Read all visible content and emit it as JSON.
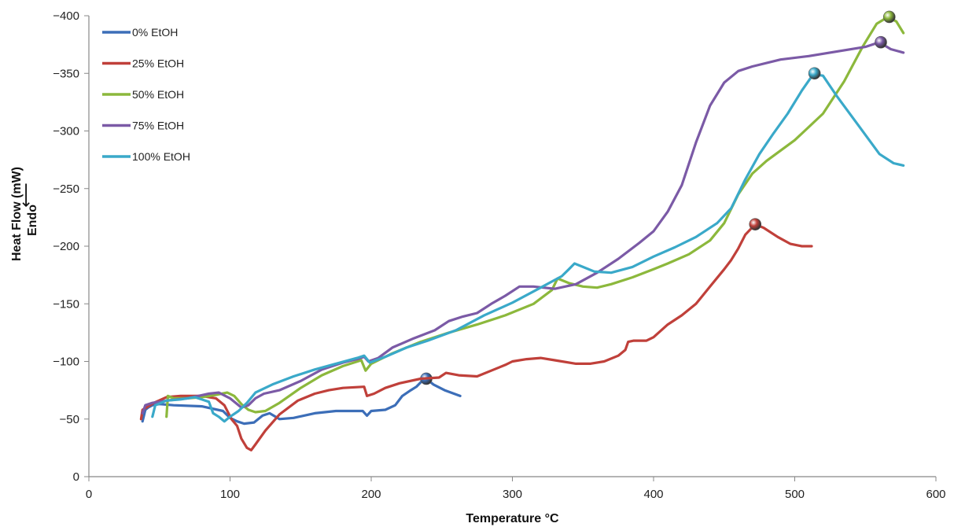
{
  "chart_data": {
    "type": "line",
    "xlabel": "Temperature °C",
    "ylabel_line1": "Heat Flow (mW)",
    "ylabel_line2": "Endo",
    "ylabel_arrow": "⟵",
    "xlim": [
      0,
      600
    ],
    "ylim": [
      0,
      -400
    ],
    "x_ticks": [
      0,
      100,
      200,
      300,
      400,
      500,
      600
    ],
    "y_ticks": [
      0,
      -50,
      -100,
      -150,
      -200,
      -250,
      -300,
      -350,
      -400
    ],
    "x_tick_labels": [
      "0",
      "100",
      "200",
      "300",
      "400",
      "500",
      "600"
    ],
    "y_tick_labels": [
      "0",
      "−50",
      "−100",
      "−150",
      "−200",
      "−250",
      "−300",
      "−350",
      "−400"
    ],
    "grid": false,
    "legend_position": "top-left",
    "series": [
      {
        "name": " 0% EtOH",
        "color": "#3c6eb8",
        "points": [
          [
            38,
            -48
          ],
          [
            40,
            -58
          ],
          [
            42,
            -60
          ],
          [
            45,
            -62
          ],
          [
            50,
            -63
          ],
          [
            60,
            -62
          ],
          [
            80,
            -61
          ],
          [
            95,
            -57
          ],
          [
            100,
            -51
          ],
          [
            105,
            -48
          ],
          [
            110,
            -46
          ],
          [
            117,
            -47
          ],
          [
            123,
            -53
          ],
          [
            128,
            -55
          ],
          [
            135,
            -50
          ],
          [
            145,
            -51
          ],
          [
            160,
            -55
          ],
          [
            175,
            -57
          ],
          [
            185,
            -57
          ],
          [
            194,
            -57
          ],
          [
            197,
            -53
          ],
          [
            200,
            -57
          ],
          [
            210,
            -58
          ],
          [
            217,
            -62
          ],
          [
            222,
            -70
          ],
          [
            228,
            -75
          ],
          [
            232,
            -78
          ],
          [
            236,
            -83
          ],
          [
            239,
            -85
          ],
          [
            244,
            -80
          ],
          [
            252,
            -75
          ],
          [
            263,
            -70
          ]
        ],
        "marker": [
          239,
          -85
        ]
      },
      {
        "name": "25% EtOH",
        "color": "#c0403a",
        "points": [
          [
            37,
            -50
          ],
          [
            38,
            -58
          ],
          [
            42,
            -61
          ],
          [
            46,
            -64
          ],
          [
            55,
            -69
          ],
          [
            65,
            -70
          ],
          [
            80,
            -70
          ],
          [
            90,
            -68
          ],
          [
            96,
            -62
          ],
          [
            101,
            -50
          ],
          [
            105,
            -44
          ],
          [
            108,
            -33
          ],
          [
            112,
            -25
          ],
          [
            115,
            -23
          ],
          [
            118,
            -28
          ],
          [
            125,
            -40
          ],
          [
            135,
            -54
          ],
          [
            148,
            -66
          ],
          [
            160,
            -72
          ],
          [
            170,
            -75
          ],
          [
            180,
            -77
          ],
          [
            195,
            -78
          ],
          [
            197,
            -70
          ],
          [
            202,
            -72
          ],
          [
            210,
            -77
          ],
          [
            220,
            -81
          ],
          [
            235,
            -85
          ],
          [
            248,
            -86
          ],
          [
            253,
            -90
          ],
          [
            262,
            -88
          ],
          [
            275,
            -87
          ],
          [
            285,
            -92
          ],
          [
            295,
            -97
          ],
          [
            300,
            -100
          ],
          [
            310,
            -102
          ],
          [
            320,
            -103
          ],
          [
            330,
            -101
          ],
          [
            345,
            -98
          ],
          [
            355,
            -98
          ],
          [
            365,
            -100
          ],
          [
            375,
            -105
          ],
          [
            380,
            -110
          ],
          [
            382,
            -117
          ],
          [
            386,
            -118
          ],
          [
            395,
            -118
          ],
          [
            400,
            -121
          ],
          [
            410,
            -132
          ],
          [
            420,
            -140
          ],
          [
            430,
            -150
          ],
          [
            440,
            -165
          ],
          [
            450,
            -180
          ],
          [
            455,
            -188
          ],
          [
            460,
            -198
          ],
          [
            465,
            -210
          ],
          [
            472,
            -219
          ],
          [
            478,
            -216
          ],
          [
            488,
            -208
          ],
          [
            497,
            -202
          ],
          [
            505,
            -200
          ],
          [
            512,
            -200
          ]
        ],
        "marker": [
          472,
          -219
        ]
      },
      {
        "name": "50% EtOH",
        "color": "#8cb83c",
        "points": [
          [
            55,
            -52
          ],
          [
            56,
            -70
          ],
          [
            60,
            -68
          ],
          [
            70,
            -68
          ],
          [
            80,
            -69
          ],
          [
            90,
            -71
          ],
          [
            98,
            -73
          ],
          [
            103,
            -70
          ],
          [
            108,
            -63
          ],
          [
            113,
            -58
          ],
          [
            118,
            -56
          ],
          [
            125,
            -57
          ],
          [
            135,
            -64
          ],
          [
            150,
            -77
          ],
          [
            165,
            -88
          ],
          [
            180,
            -96
          ],
          [
            193,
            -101
          ],
          [
            196,
            -92
          ],
          [
            200,
            -98
          ],
          [
            215,
            -107
          ],
          [
            235,
            -117
          ],
          [
            255,
            -125
          ],
          [
            275,
            -132
          ],
          [
            295,
            -140
          ],
          [
            315,
            -150
          ],
          [
            328,
            -162
          ],
          [
            332,
            -172
          ],
          [
            340,
            -168
          ],
          [
            350,
            -165
          ],
          [
            360,
            -164
          ],
          [
            370,
            -167
          ],
          [
            385,
            -173
          ],
          [
            400,
            -180
          ],
          [
            410,
            -185
          ],
          [
            425,
            -193
          ],
          [
            440,
            -205
          ],
          [
            450,
            -220
          ],
          [
            460,
            -245
          ],
          [
            470,
            -263
          ],
          [
            480,
            -274
          ],
          [
            500,
            -292
          ],
          [
            520,
            -315
          ],
          [
            535,
            -343
          ],
          [
            548,
            -373
          ],
          [
            558,
            -393
          ],
          [
            566,
            -399
          ],
          [
            572,
            -395
          ],
          [
            577,
            -385
          ]
        ],
        "marker": [
          567,
          -399
        ]
      },
      {
        "name": "75% EtOH",
        "color": "#7b5aa6",
        "points": [
          [
            38,
            -55
          ],
          [
            40,
            -62
          ],
          [
            45,
            -64
          ],
          [
            55,
            -66
          ],
          [
            70,
            -68
          ],
          [
            85,
            -72
          ],
          [
            92,
            -73
          ],
          [
            100,
            -68
          ],
          [
            108,
            -60
          ],
          [
            113,
            -62
          ],
          [
            118,
            -68
          ],
          [
            124,
            -72
          ],
          [
            135,
            -75
          ],
          [
            150,
            -83
          ],
          [
            165,
            -93
          ],
          [
            180,
            -99
          ],
          [
            190,
            -102
          ],
          [
            195,
            -104
          ],
          [
            198,
            -100
          ],
          [
            205,
            -103
          ],
          [
            215,
            -112
          ],
          [
            230,
            -120
          ],
          [
            245,
            -127
          ],
          [
            255,
            -135
          ],
          [
            265,
            -139
          ],
          [
            275,
            -142
          ],
          [
            285,
            -150
          ],
          [
            295,
            -157
          ],
          [
            305,
            -165
          ],
          [
            315,
            -165
          ],
          [
            330,
            -163
          ],
          [
            345,
            -167
          ],
          [
            360,
            -177
          ],
          [
            375,
            -189
          ],
          [
            390,
            -203
          ],
          [
            400,
            -213
          ],
          [
            410,
            -230
          ],
          [
            420,
            -253
          ],
          [
            430,
            -290
          ],
          [
            440,
            -322
          ],
          [
            450,
            -342
          ],
          [
            460,
            -352
          ],
          [
            470,
            -356
          ],
          [
            490,
            -362
          ],
          [
            510,
            -365
          ],
          [
            530,
            -369
          ],
          [
            550,
            -373
          ],
          [
            560,
            -377
          ],
          [
            568,
            -371
          ],
          [
            577,
            -368
          ]
        ],
        "marker": [
          561,
          -377
        ]
      },
      {
        "name": "100% EtOH",
        "color": "#3aa9c9",
        "points": [
          [
            45,
            -52
          ],
          [
            47,
            -62
          ],
          [
            55,
            -66
          ],
          [
            65,
            -67
          ],
          [
            75,
            -69
          ],
          [
            85,
            -65
          ],
          [
            88,
            -55
          ],
          [
            92,
            -52
          ],
          [
            96,
            -48
          ],
          [
            100,
            -52
          ],
          [
            106,
            -57
          ],
          [
            112,
            -64
          ],
          [
            118,
            -73
          ],
          [
            130,
            -80
          ],
          [
            145,
            -87
          ],
          [
            160,
            -93
          ],
          [
            175,
            -98
          ],
          [
            190,
            -103
          ],
          [
            195,
            -105
          ],
          [
            199,
            -99
          ],
          [
            210,
            -104
          ],
          [
            225,
            -112
          ],
          [
            240,
            -118
          ],
          [
            260,
            -127
          ],
          [
            280,
            -140
          ],
          [
            300,
            -151
          ],
          [
            320,
            -164
          ],
          [
            335,
            -174
          ],
          [
            340,
            -180
          ],
          [
            344,
            -185
          ],
          [
            350,
            -182
          ],
          [
            358,
            -178
          ],
          [
            370,
            -177
          ],
          [
            385,
            -182
          ],
          [
            400,
            -191
          ],
          [
            415,
            -199
          ],
          [
            430,
            -208
          ],
          [
            445,
            -220
          ],
          [
            455,
            -233
          ],
          [
            465,
            -258
          ],
          [
            475,
            -280
          ],
          [
            485,
            -298
          ],
          [
            495,
            -315
          ],
          [
            505,
            -335
          ],
          [
            513,
            -349
          ],
          [
            520,
            -348
          ],
          [
            530,
            -330
          ],
          [
            545,
            -305
          ],
          [
            560,
            -280
          ],
          [
            570,
            -272
          ],
          [
            577,
            -270
          ]
        ],
        "marker": [
          514,
          -350
        ]
      }
    ]
  }
}
